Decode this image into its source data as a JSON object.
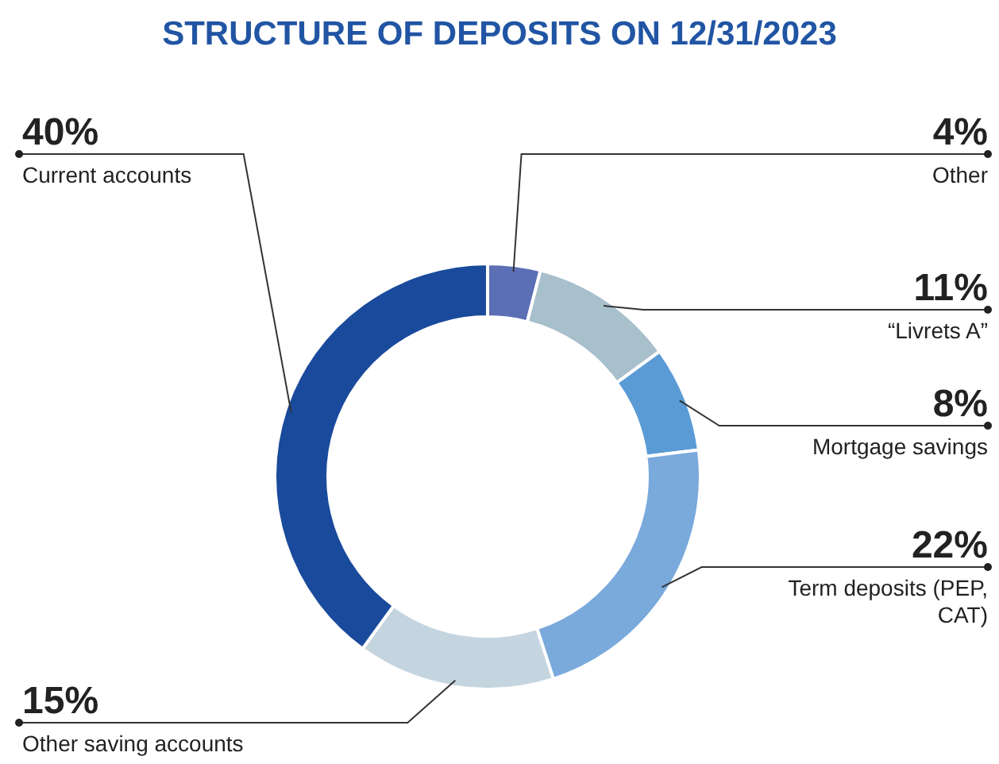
{
  "chart_data": {
    "type": "donut",
    "title": "STRUCTURE OF DEPOSITS ON 12/31/2023",
    "categories": [
      "Other",
      "“Livrets A”",
      "Mortgage savings",
      "Term deposits (PEP, CAT)",
      "Other saving accounts",
      "Current accounts"
    ],
    "values": [
      4,
      11,
      8,
      22,
      15,
      40
    ],
    "value_labels": [
      "4%",
      "11%",
      "8%",
      "22%",
      "15%",
      "40%"
    ],
    "colors": [
      "#5b6fb5",
      "#a8bfcc",
      "#5b9bd5",
      "#7aa9dc",
      "#c5d5e0",
      "#1a4a9c"
    ],
    "legend": false
  }
}
